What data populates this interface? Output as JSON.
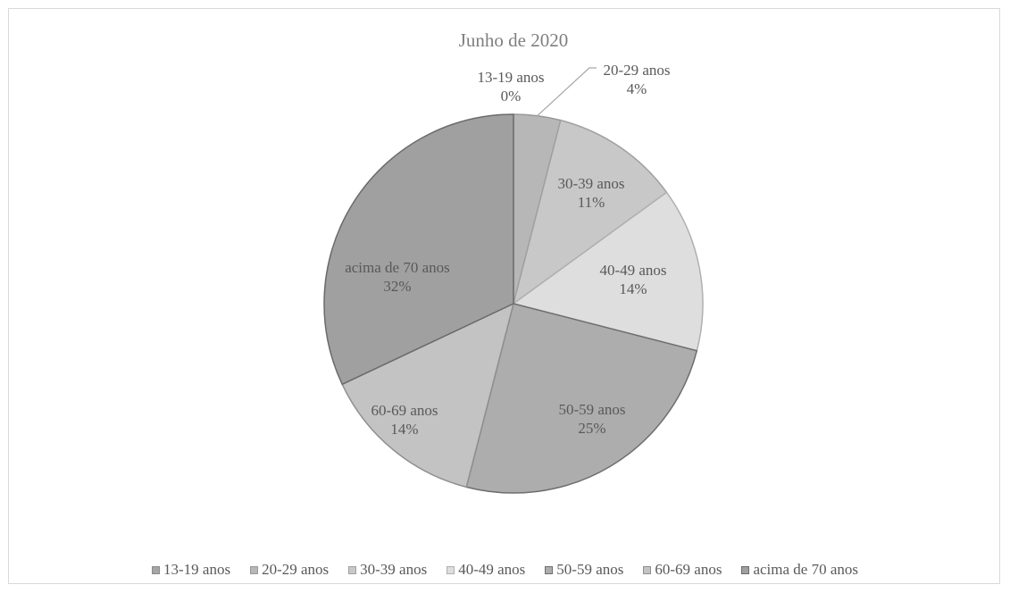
{
  "chart_data": {
    "type": "pie",
    "title": "Junho de 2020",
    "slices": [
      {
        "label": "13-19 anos",
        "value": 0,
        "pct_label": "0%",
        "color": "#a6a6a6",
        "stroke": "#8c8c8c"
      },
      {
        "label": "20-29 anos",
        "value": 4,
        "pct_label": "4%",
        "color": "#b7b7b7",
        "stroke": "#999999"
      },
      {
        "label": "30-39 anos",
        "value": 11,
        "pct_label": "11%",
        "color": "#c8c8c8",
        "stroke": "#a0a0a0"
      },
      {
        "label": "40-49 anos",
        "value": 14,
        "pct_label": "14%",
        "color": "#dedede",
        "stroke": "#b0b0b0"
      },
      {
        "label": "50-59 anos",
        "value": 25,
        "pct_label": "25%",
        "color": "#adadad",
        "stroke": "#6e6e6e"
      },
      {
        "label": "60-69 anos",
        "value": 14,
        "pct_label": "14%",
        "color": "#c3c3c3",
        "stroke": "#8f8f8f"
      },
      {
        "label": "acima de 70 anos",
        "value": 32,
        "pct_label": "32%",
        "color": "#a0a0a0",
        "stroke": "#6a6a6a"
      }
    ],
    "legend_position": "bottom"
  }
}
